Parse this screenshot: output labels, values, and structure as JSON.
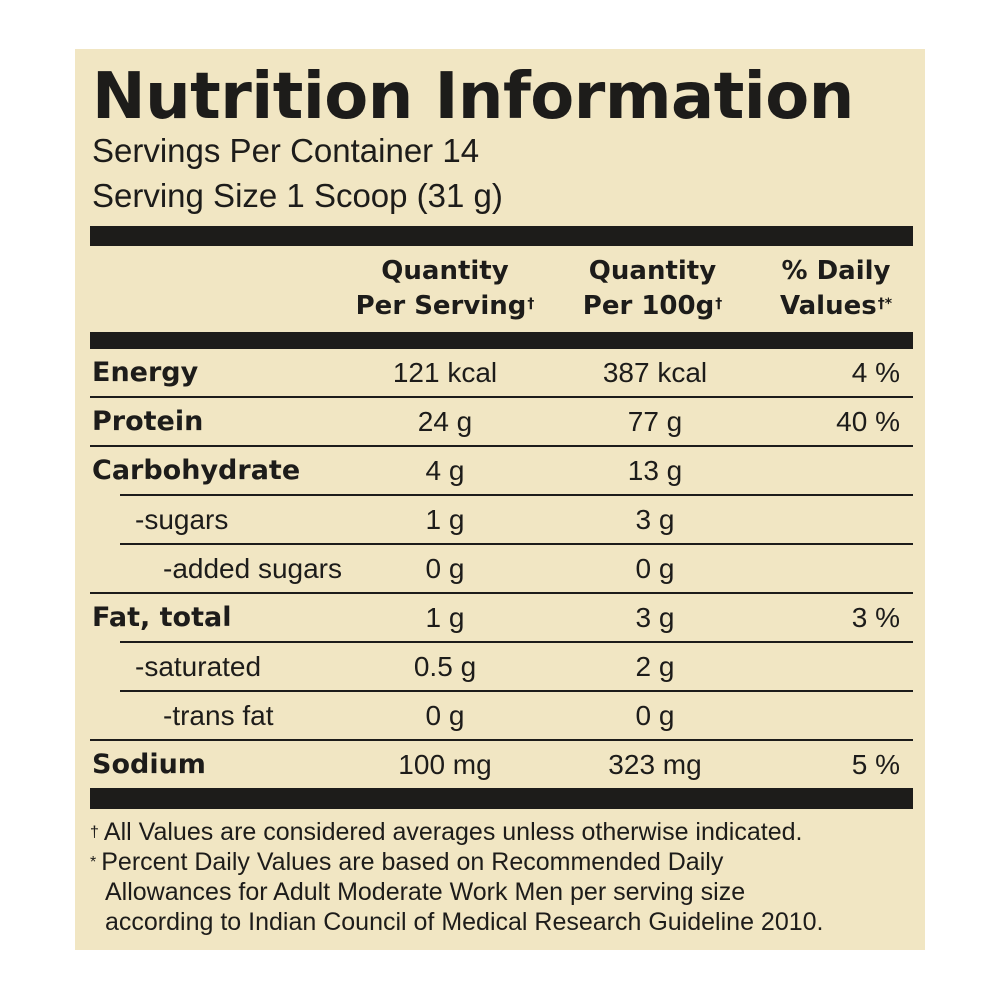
{
  "label": {
    "title": "Nutrition Information",
    "servings_per_container": "Servings Per Container 14",
    "serving_size": "Serving Size 1 Scoop (31 g)",
    "columns": {
      "per_serving": {
        "line1": "Quantity",
        "line2": "Per Serving",
        "mark": "†"
      },
      "per_100g": {
        "line1": "Quantity",
        "line2": "Per 100g",
        "mark": "†"
      },
      "daily_values": {
        "line1": "% Daily",
        "line2": "Values",
        "mark": "†*"
      }
    },
    "rows": [
      {
        "name": "Energy",
        "per_serving": "121 kcal",
        "per_100g": "387 kcal",
        "daily_value": "4 %"
      },
      {
        "name": "Protein",
        "per_serving": "24 g",
        "per_100g": "77 g",
        "daily_value": "40 %"
      },
      {
        "name": "Carbohydrate",
        "per_serving": "4 g",
        "per_100g": "13 g",
        "daily_value": ""
      },
      {
        "name": "-sugars",
        "per_serving": "1 g",
        "per_100g": "3 g",
        "daily_value": ""
      },
      {
        "name": "-added sugars",
        "per_serving": "0 g",
        "per_100g": "0 g",
        "daily_value": ""
      },
      {
        "name": "Fat, total",
        "per_serving": "1 g",
        "per_100g": "3 g",
        "daily_value": "3 %"
      },
      {
        "name": "-saturated",
        "per_serving": "0.5 g",
        "per_100g": "2 g",
        "daily_value": ""
      },
      {
        "name": "-trans fat",
        "per_serving": "0 g",
        "per_100g": "0 g",
        "daily_value": ""
      },
      {
        "name": "Sodium",
        "per_serving": "100 mg",
        "per_100g": "323 mg",
        "daily_value": "5 %"
      }
    ],
    "footnotes": {
      "dagger_mark": "†",
      "dagger_text": "All Values are considered averages unless otherwise indicated.",
      "star_mark": "*",
      "star_line1": "Percent Daily Values are based on Recommended Daily",
      "star_line2": "Allowances for Adult Moderate Work Men per serving size",
      "star_line3": "according to Indian Council of Medical Research Guideline 2010."
    }
  }
}
